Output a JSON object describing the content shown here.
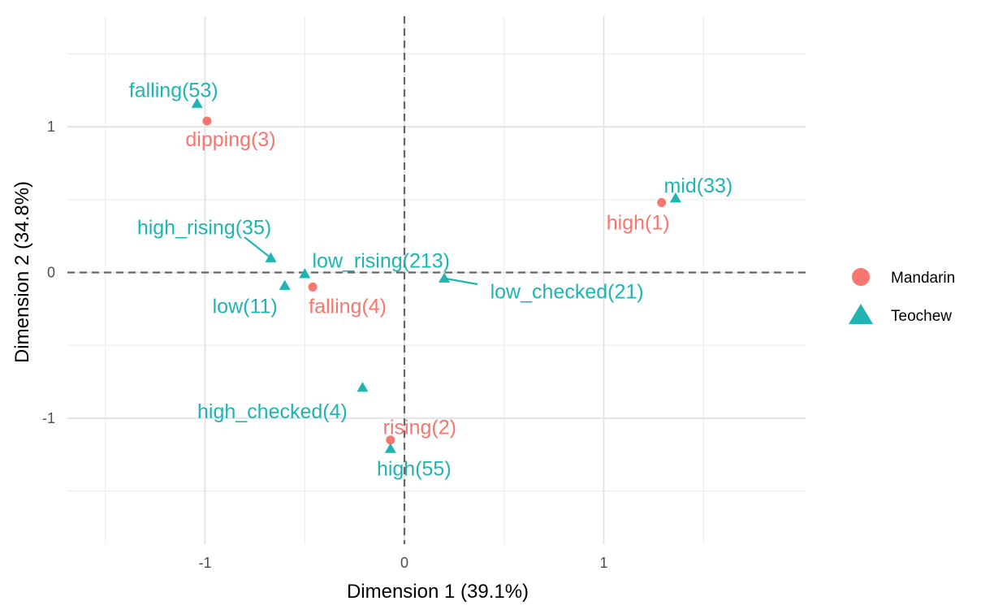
{
  "chart_data": {
    "type": "scatter",
    "title": "",
    "xlabel": "Dimension 1 (39.1%)",
    "ylabel": "Dimension 2 (34.8%)",
    "xlim": [
      -1.5,
      1.95
    ],
    "ylim": [
      -1.78,
      1.78
    ],
    "xticks": [
      -1,
      0,
      1
    ],
    "xtick_labels": [
      "-1",
      "0",
      "1"
    ],
    "yticks": [
      1,
      0,
      -1
    ],
    "ytick_labels": [
      "1",
      "0",
      "-1"
    ],
    "grid": true,
    "reference_lines": {
      "x": 0,
      "y": 0,
      "style": "dashed"
    },
    "legend_position": "right",
    "series": [
      {
        "name": "Mandarin",
        "color": "#F8766D",
        "marker": "circle",
        "points": [
          {
            "label": "dipping(3)",
            "x": -0.99,
            "y": 1.04
          },
          {
            "label": "high(1)",
            "x": 1.29,
            "y": 0.48
          },
          {
            "label": "falling(4)",
            "x": -0.46,
            "y": -0.1
          },
          {
            "label": "rising(2)",
            "x": -0.07,
            "y": -1.15
          }
        ]
      },
      {
        "name": "Teochew",
        "color": "#1FB4B4",
        "marker": "triangle",
        "points": [
          {
            "label": "falling(53)",
            "x": -1.04,
            "y": 1.16
          },
          {
            "label": "mid(33)",
            "x": 1.36,
            "y": 0.51
          },
          {
            "label": "high_rising(35)",
            "x": -0.67,
            "y": 0.1
          },
          {
            "label": "low_rising(213)",
            "x": -0.5,
            "y": -0.01
          },
          {
            "label": "low(11)",
            "x": -0.6,
            "y": -0.09
          },
          {
            "label": "low_checked(21)",
            "x": 0.2,
            "y": -0.04
          },
          {
            "label": "high_checked(4)",
            "x": -0.21,
            "y": -0.79
          },
          {
            "label": "high(55)",
            "x": -0.07,
            "y": -1.21
          }
        ]
      }
    ]
  }
}
